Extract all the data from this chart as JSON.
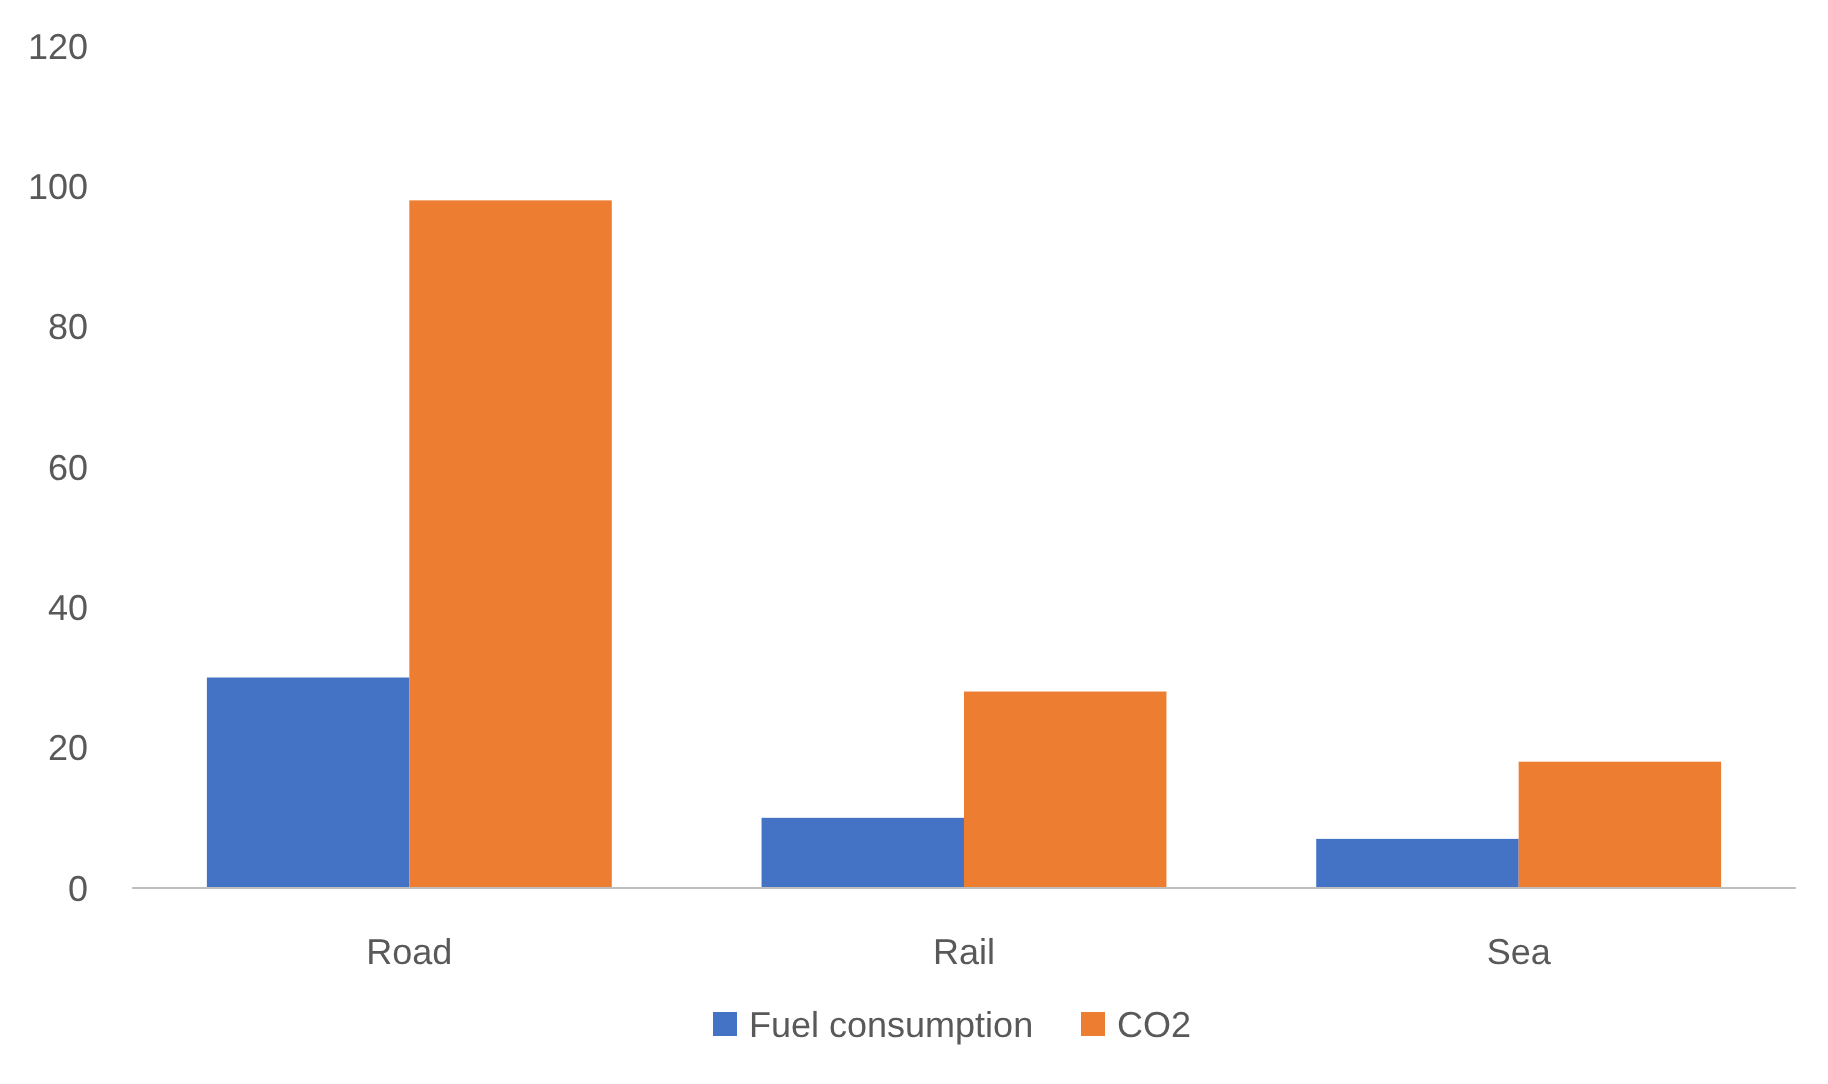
{
  "chart_data": {
    "type": "bar",
    "categories": [
      "Road",
      "Rail",
      "Sea"
    ],
    "series": [
      {
        "name": "Fuel consumption",
        "color": "#4472c4",
        "values": [
          30,
          10,
          7
        ]
      },
      {
        "name": "CO2",
        "color": "#ed7d31",
        "values": [
          98,
          28,
          18
        ]
      }
    ],
    "ylim": [
      0,
      120
    ],
    "yticks": [
      0,
      20,
      40,
      60,
      80,
      100,
      120
    ],
    "grid": false,
    "legend": "bottom"
  }
}
